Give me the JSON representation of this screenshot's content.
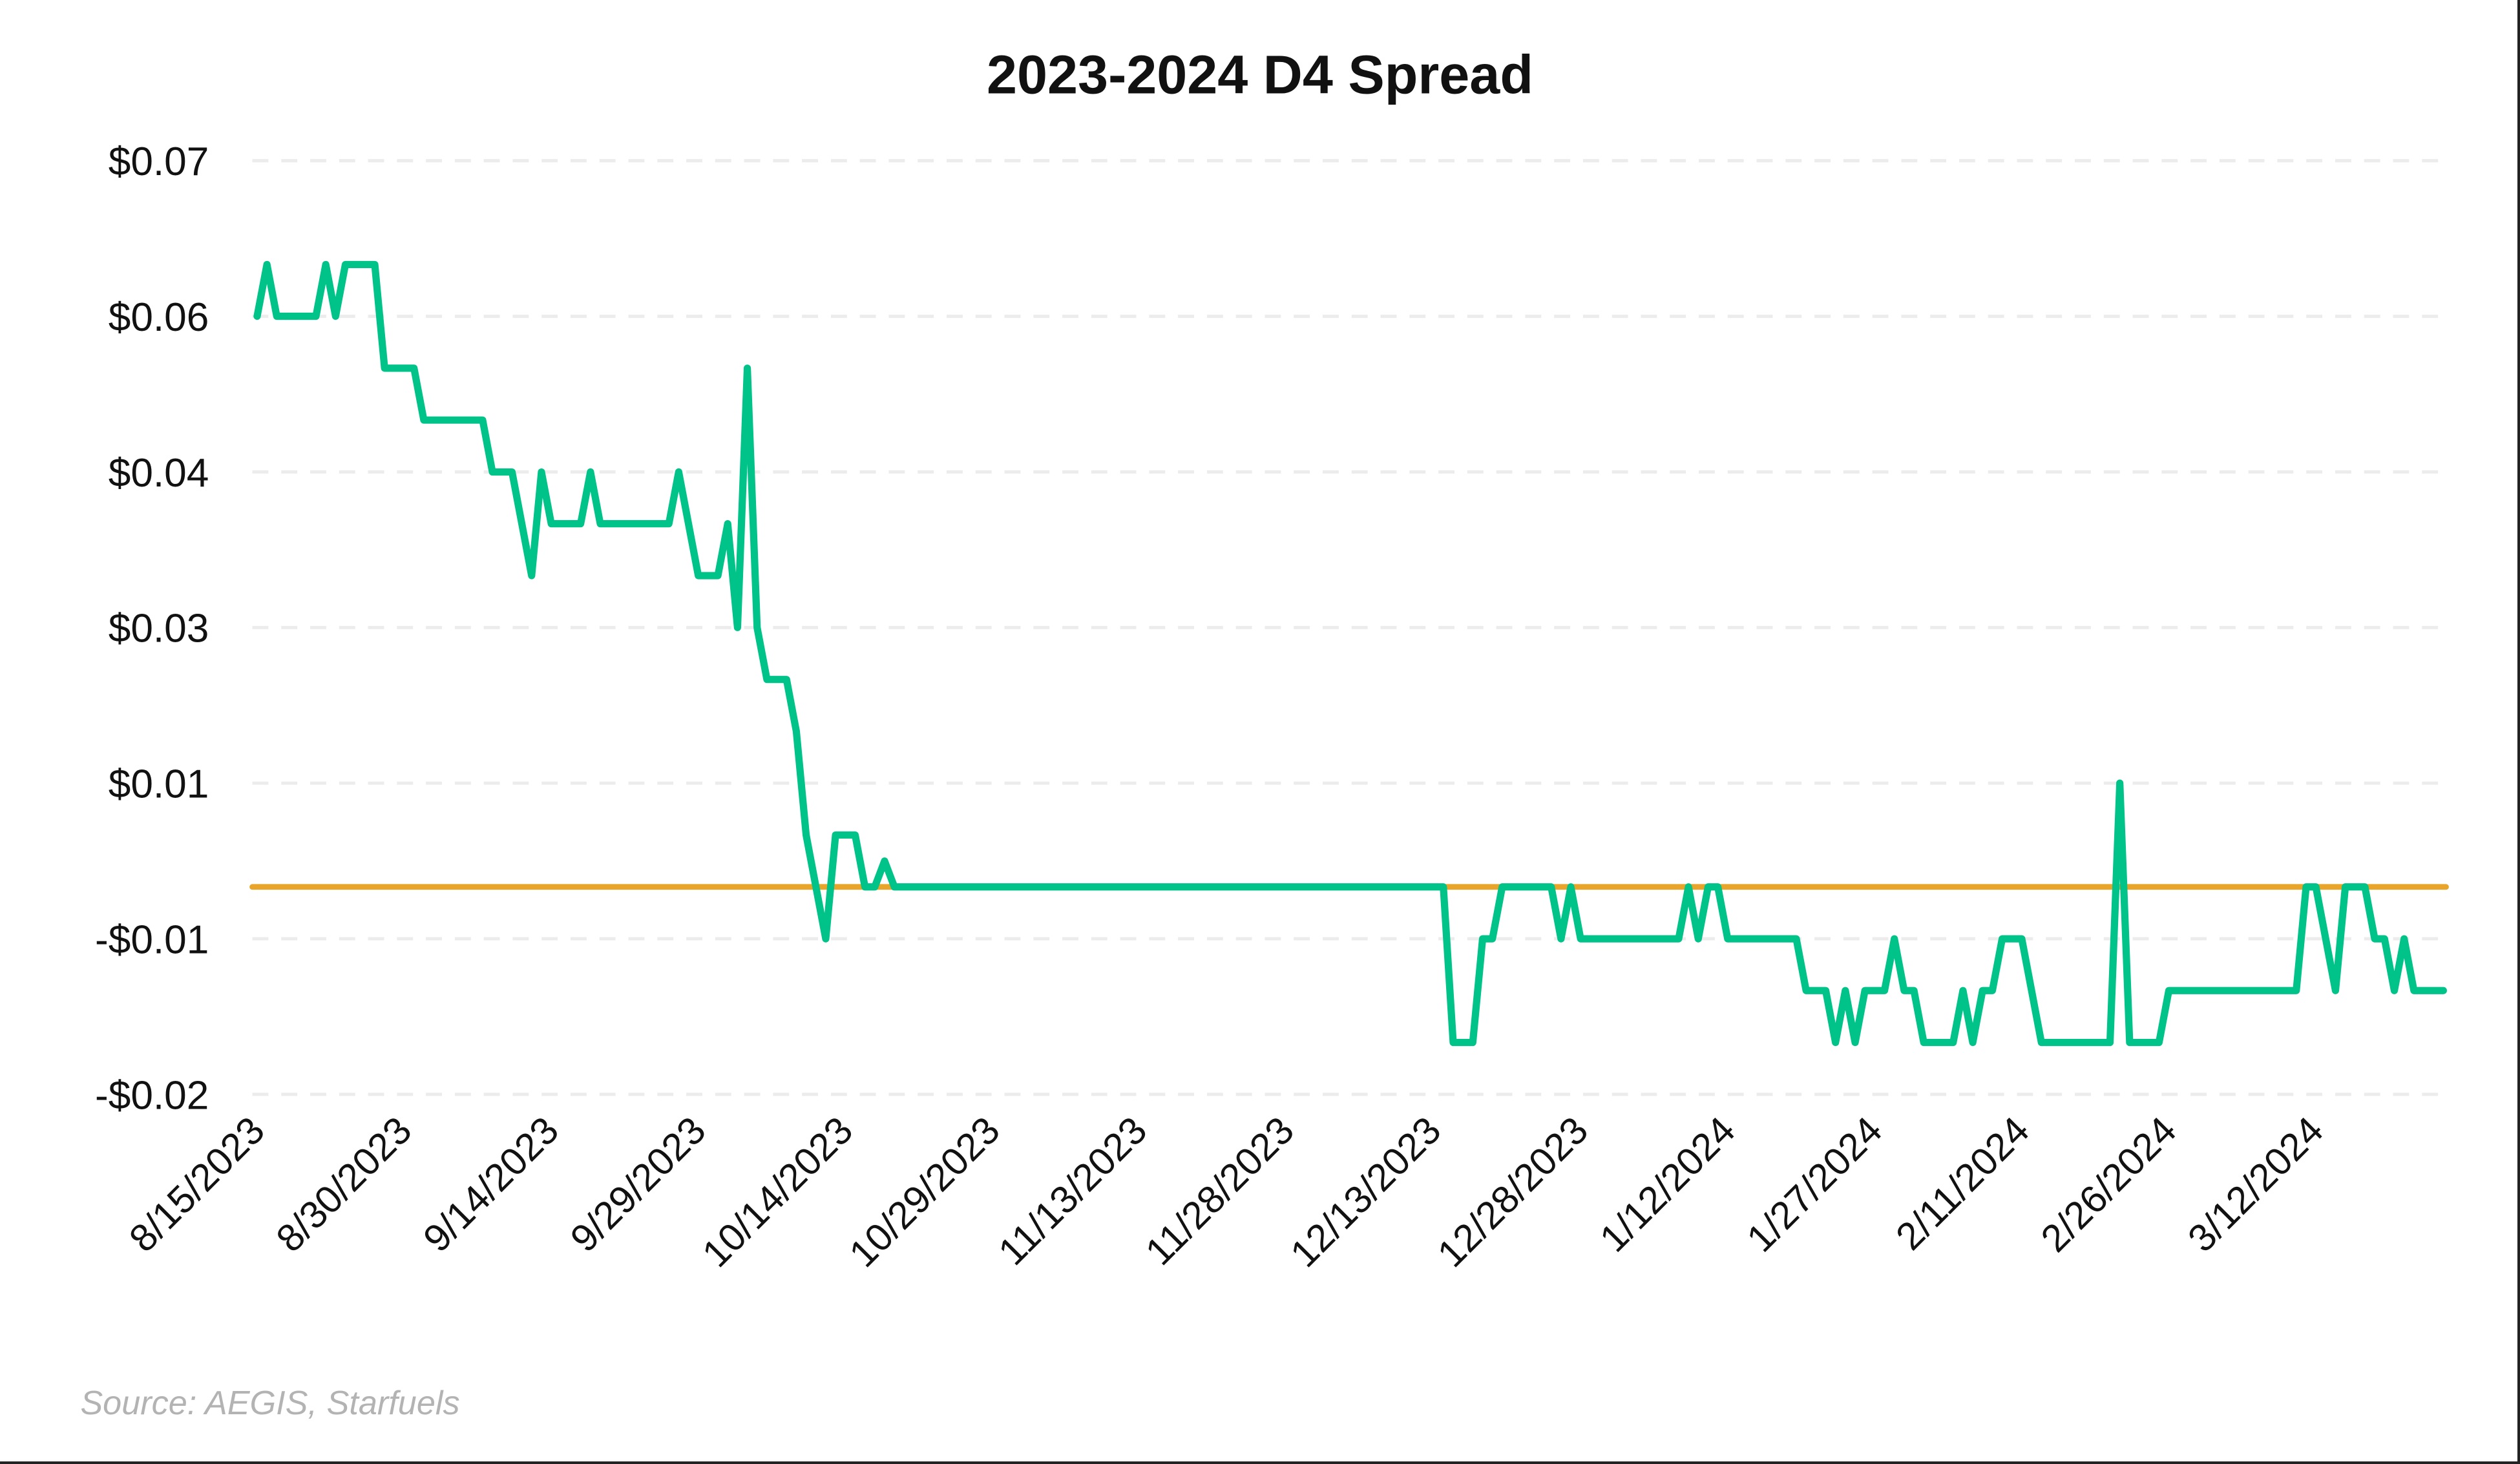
{
  "chart_data": {
    "type": "line",
    "title": "2023-2024 D4 Spread",
    "xlabel": "",
    "ylabel": "",
    "source": "Source: AEGIS, Starfuels",
    "ylim": [
      -0.02,
      0.07
    ],
    "yticks": [
      0.07,
      0.055,
      0.04,
      0.025,
      0.01,
      -0.005,
      -0.02
    ],
    "ytick_labels": [
      "$0.07",
      "$0.06",
      "$0.04",
      "$0.03",
      "$0.01",
      "-$0.01",
      "-$0.02"
    ],
    "grid": true,
    "grid_style": "dashed horizontal",
    "legend": null,
    "start_date": "8/15/2023",
    "end_date": "3/25/2024",
    "xtick_labels": [
      "8/15/2023",
      "8/30/2023",
      "9/14/2023",
      "9/29/2023",
      "10/14/2023",
      "10/29/2023",
      "11/13/2023",
      "11/28/2023",
      "12/13/2023",
      "12/28/2023",
      "1/12/2024",
      "1/27/2024",
      "2/11/2024",
      "2/26/2024",
      "3/12/2024"
    ],
    "xtick_day_offsets": [
      0,
      15,
      30,
      45,
      60,
      75,
      90,
      105,
      120,
      135,
      150,
      165,
      180,
      195,
      210
    ],
    "series": [
      {
        "name": "D4 Spread",
        "color": "#00C389",
        "points_day_value": [
          [
            0,
            0.055
          ],
          [
            1,
            0.06
          ],
          [
            2,
            0.055
          ],
          [
            6,
            0.055
          ],
          [
            7,
            0.06
          ],
          [
            8,
            0.055
          ],
          [
            9,
            0.06
          ],
          [
            12,
            0.06
          ],
          [
            13,
            0.05
          ],
          [
            16,
            0.05
          ],
          [
            17,
            0.045
          ],
          [
            23,
            0.045
          ],
          [
            24,
            0.04
          ],
          [
            26,
            0.04
          ],
          [
            28,
            0.03
          ],
          [
            29,
            0.04
          ],
          [
            30,
            0.035
          ],
          [
            33,
            0.035
          ],
          [
            34,
            0.04
          ],
          [
            35,
            0.035
          ],
          [
            42,
            0.035
          ],
          [
            43,
            0.04
          ],
          [
            45,
            0.03
          ],
          [
            47,
            0.03
          ],
          [
            48,
            0.035
          ],
          [
            49,
            0.025
          ],
          [
            50,
            0.05
          ],
          [
            51,
            0.025
          ],
          [
            52,
            0.02
          ],
          [
            54,
            0.02
          ],
          [
            55,
            0.015
          ],
          [
            56,
            0.005
          ],
          [
            58,
            -0.005
          ],
          [
            59,
            0.005
          ],
          [
            61,
            0.005
          ],
          [
            62,
            0.0
          ],
          [
            63,
            0.0
          ],
          [
            64,
            0.0025
          ],
          [
            65,
            0.0
          ],
          [
            121,
            0.0
          ],
          [
            122,
            -0.015
          ],
          [
            124,
            -0.015
          ],
          [
            125,
            -0.005
          ],
          [
            126,
            -0.005
          ],
          [
            127,
            0.0
          ],
          [
            132,
            0.0
          ],
          [
            133,
            -0.005
          ],
          [
            134,
            0.0
          ],
          [
            135,
            -0.005
          ],
          [
            145,
            -0.005
          ],
          [
            146,
            0.0
          ],
          [
            147,
            -0.005
          ],
          [
            148,
            0.0
          ],
          [
            149,
            0.0
          ],
          [
            150,
            -0.005
          ],
          [
            157,
            -0.005
          ],
          [
            158,
            -0.01
          ],
          [
            160,
            -0.01
          ],
          [
            161,
            -0.015
          ],
          [
            162,
            -0.01
          ],
          [
            163,
            -0.015
          ],
          [
            164,
            -0.01
          ],
          [
            166,
            -0.01
          ],
          [
            167,
            -0.005
          ],
          [
            168,
            -0.01
          ],
          [
            169,
            -0.01
          ],
          [
            170,
            -0.015
          ],
          [
            173,
            -0.015
          ],
          [
            174,
            -0.01
          ],
          [
            175,
            -0.015
          ],
          [
            176,
            -0.01
          ],
          [
            177,
            -0.01
          ],
          [
            178,
            -0.005
          ],
          [
            180,
            -0.005
          ],
          [
            182,
            -0.015
          ],
          [
            189,
            -0.015
          ],
          [
            190,
            0.01
          ],
          [
            191,
            -0.015
          ],
          [
            194,
            -0.015
          ],
          [
            195,
            -0.01
          ],
          [
            208,
            -0.01
          ],
          [
            209,
            0.0
          ],
          [
            210,
            0.0
          ],
          [
            212,
            -0.01
          ],
          [
            213,
            0.0
          ],
          [
            215,
            0.0
          ],
          [
            216,
            -0.005
          ],
          [
            217,
            -0.005
          ],
          [
            218,
            -0.01
          ],
          [
            219,
            -0.005
          ],
          [
            220,
            -0.01
          ],
          [
            223,
            -0.01
          ]
        ]
      },
      {
        "name": "Zero line",
        "color": "#E9A52A",
        "points_day_value": [
          [
            0,
            0.0
          ],
          [
            223,
            0.0
          ]
        ]
      }
    ]
  },
  "colors": {
    "spread_line": "#00C389",
    "zero_line": "#E9A52A",
    "grid": "#ECECEC",
    "text": "#111111",
    "source_text": "#B3B3B3"
  }
}
